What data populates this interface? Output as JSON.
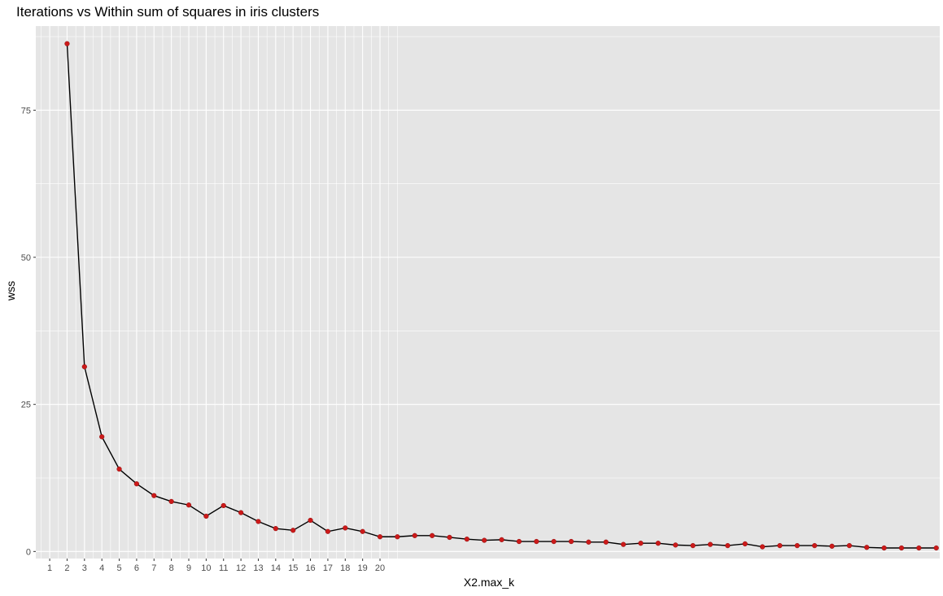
{
  "chart_data": {
    "type": "line",
    "title": "Iterations vs Within sum of squares in iris clusters",
    "xlabel": "X2.max_k",
    "ylabel": "wss",
    "xlim": [
      0.2,
      52.2
    ],
    "ylim": [
      -1.2,
      89.3
    ],
    "x_ticks": [
      1,
      2,
      3,
      4,
      5,
      6,
      7,
      8,
      9,
      10,
      11,
      12,
      13,
      14,
      15,
      16,
      17,
      18,
      19,
      20
    ],
    "y_ticks": [
      0,
      25,
      50,
      75
    ],
    "x_minor_grid": [
      1,
      2,
      3,
      4,
      5,
      6,
      7,
      8,
      9,
      10,
      11,
      12,
      13,
      14,
      15,
      16,
      17,
      18,
      19,
      20
    ],
    "x_minor_grid_extra": [
      20.5,
      21
    ],
    "grid": true,
    "legend": "none",
    "line_color": "#000000",
    "point_color": "#cc1a1a",
    "panel_color": "#e5e5e5",
    "grid_color": "#ffffff",
    "series": [
      {
        "x": [
          2,
          3,
          4,
          5,
          6,
          7,
          8,
          9,
          10,
          11,
          12,
          13,
          14,
          15,
          16,
          17,
          18,
          19,
          20,
          21,
          22,
          23,
          24,
          25,
          26,
          27,
          28,
          29,
          30,
          31,
          32,
          33,
          34,
          35,
          36,
          37,
          38,
          39,
          40,
          41,
          42,
          43,
          44,
          45,
          46,
          47,
          48,
          49,
          50,
          51,
          52
        ],
        "y": [
          86.3,
          31.4,
          19.5,
          14.0,
          11.5,
          9.5,
          8.5,
          7.9,
          6.0,
          7.8,
          6.6,
          5.1,
          3.9,
          3.6,
          5.3,
          3.4,
          4.0,
          3.4,
          2.5,
          2.5,
          2.7,
          2.7,
          2.4,
          2.1,
          1.9,
          2.0,
          1.7,
          1.7,
          1.7,
          1.7,
          1.6,
          1.6,
          1.2,
          1.4,
          1.4,
          1.1,
          1.0,
          1.2,
          1.0,
          1.3,
          0.8,
          1.0,
          1.0,
          1.0,
          0.9,
          1.0,
          0.7,
          0.6,
          0.6,
          0.6,
          0.6
        ]
      }
    ]
  }
}
